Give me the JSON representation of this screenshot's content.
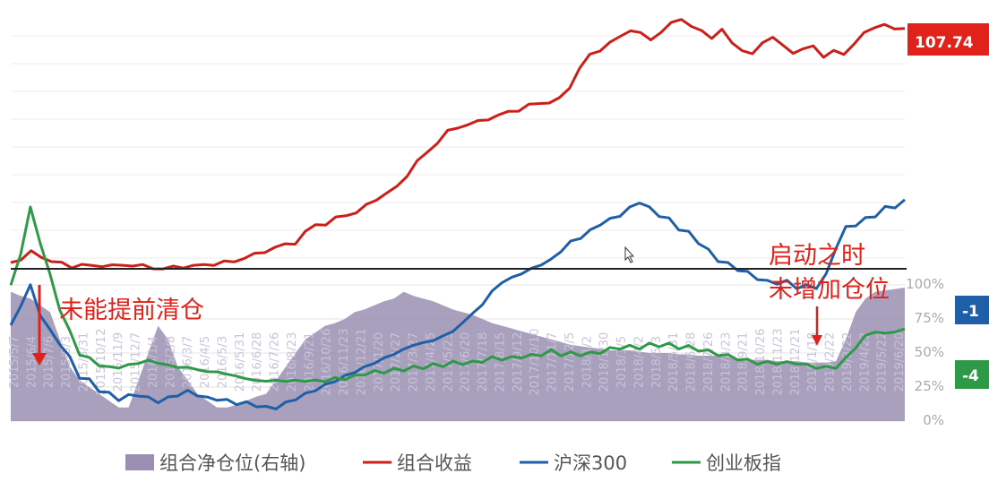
{
  "chart_data": {
    "type": "line",
    "panels": [
      "portfolio-return (top)",
      "net-position / index (bottom)"
    ],
    "x_ticks": [
      "2015/5/7",
      "2015/6/4",
      "2015/7/6",
      "2015/8/3",
      "2015/8/31",
      "2015/10/12",
      "2015/11/9",
      "2015/12/7",
      "2016/1/4",
      "2016/2/8",
      "2016/3/7",
      "2016/4/5",
      "2016/5/3",
      "2016/5/31",
      "2016/6/28",
      "2016/7/26",
      "2016/8/23",
      "2016/9/21",
      "2016/10/26",
      "2016/11/23",
      "2016/12/21",
      "2017/1/20",
      "2017/2/27",
      "2017/3/27",
      "2017/4/25",
      "2017/5/23",
      "2017/6/20",
      "2017/7/18",
      "2017/8/15",
      "2017/9/12",
      "2017/10/10",
      "2017/11/7",
      "2017/12/5",
      "2018/1/2",
      "2018/1/30",
      "2018/3/5",
      "2018/4/2",
      "2018/5/3",
      "2018/5/31",
      "2018/6/28",
      "2018/7/26",
      "2018/8/23",
      "2018/9/21",
      "2018/10/26",
      "2018/11/23",
      "2018/12/21",
      "2019/1/18",
      "2019/2/22",
      "2019/3/22",
      "2019/4/23",
      "2019/5/22",
      "2019/6/20"
    ],
    "right_axis_ticks": [
      "100%",
      "75%",
      "50%",
      "25%",
      "0%"
    ],
    "badges": {
      "portfolio": "107.74",
      "csi300": "-1",
      "chinext": "-4"
    },
    "series": [
      {
        "name": "组合收益",
        "panel": "top",
        "color": "#cc1f1a",
        "values": [
          0,
          3,
          8,
          5,
          1,
          -1,
          -3,
          -2,
          -3,
          -2,
          -3,
          -2,
          -2,
          -3,
          -4,
          -5,
          -4,
          -3,
          -3,
          -2,
          -1,
          0,
          1,
          4,
          6,
          9,
          12,
          14,
          16,
          24,
          30,
          31,
          35,
          38,
          40,
          45,
          51,
          55,
          60,
          70,
          80,
          88,
          96,
          104,
          108,
          110,
          112,
          115,
          117,
          120,
          122,
          125,
          127,
          128,
          130,
          140,
          155,
          165,
          170,
          175,
          180,
          186,
          182,
          178,
          184,
          190,
          195,
          188,
          184,
          180,
          185,
          175,
          170,
          165,
          176,
          180,
          172,
          168,
          170,
          172,
          165,
          168,
          166,
          175,
          182,
          188,
          190,
          185,
          188
        ],
        "values_note_pct_scale": true
      },
      {
        "name": "沪深300",
        "panel": "bottom",
        "color": "#1f5fa8",
        "values": [
          42,
          52,
          60,
          48,
          40,
          35,
          28,
          20,
          18,
          14,
          12,
          10,
          11,
          12,
          10,
          9,
          10,
          12,
          13,
          12,
          10,
          10,
          9,
          8,
          8,
          7,
          6,
          6,
          8,
          10,
          12,
          14,
          16,
          18,
          20,
          22,
          24,
          26,
          28,
          30,
          32,
          34,
          35,
          36,
          38,
          40,
          44,
          48,
          52,
          58,
          62,
          64,
          66,
          68,
          70,
          72,
          76,
          80,
          82,
          85,
          88,
          90,
          92,
          95,
          98,
          95,
          92,
          90,
          86,
          84,
          80,
          76,
          72,
          70,
          68,
          66,
          64,
          62,
          62,
          62,
          60,
          60,
          60,
          65,
          78,
          86,
          88,
          90,
          92,
          95,
          96,
          98
        ]
      },
      {
        "name": "创业板指",
        "panel": "bottom",
        "color": "#2e9a47",
        "values": [
          60,
          75,
          95,
          80,
          65,
          50,
          40,
          30,
          28,
          25,
          24,
          24,
          25,
          26,
          27,
          26,
          25,
          24,
          24,
          23,
          22,
          22,
          21,
          20,
          19,
          18,
          18,
          18,
          18,
          18,
          18,
          18,
          18,
          19,
          19,
          20,
          21,
          22,
          22,
          23,
          23,
          24,
          24,
          25,
          25,
          26,
          26,
          26,
          27,
          28,
          28,
          28,
          29,
          29,
          30,
          31,
          30,
          30,
          30,
          30,
          31,
          32,
          33,
          33,
          33,
          34,
          34,
          34,
          33,
          33,
          32,
          31,
          30,
          29,
          28,
          27,
          26,
          26,
          26,
          26,
          26,
          25,
          24,
          24,
          24,
          28,
          33,
          38,
          40,
          39,
          40,
          41
        ]
      },
      {
        "name": "组合净仓位(右轴)",
        "panel": "bottom",
        "color": "#9a8fb2",
        "type": "area",
        "values": [
          95,
          92,
          90,
          85,
          80,
          60,
          40,
          30,
          25,
          20,
          15,
          10,
          10,
          30,
          50,
          70,
          60,
          40,
          30,
          20,
          15,
          10,
          10,
          12,
          15,
          18,
          20,
          30,
          40,
          50,
          60,
          65,
          70,
          72,
          75,
          80,
          82,
          85,
          88,
          90,
          95,
          92,
          90,
          88,
          85,
          82,
          80,
          78,
          75,
          72,
          70,
          68,
          66,
          64,
          62,
          60,
          58,
          56,
          55,
          54,
          53,
          52,
          52,
          52,
          51,
          50,
          50,
          50,
          49,
          49,
          48,
          48,
          48,
          47,
          46,
          45,
          45,
          45,
          44,
          44,
          44,
          43,
          43,
          43,
          44,
          60,
          80,
          90,
          95,
          96,
          97,
          98
        ]
      }
    ],
    "legend": [
      {
        "label": "组合净仓位(右轴)",
        "color": "#9a8fb2",
        "shape": "square"
      },
      {
        "label": "组合收益",
        "color": "#cc1f1a",
        "shape": "line"
      },
      {
        "label": "沪深300",
        "color": "#1f5fa8",
        "shape": "line"
      },
      {
        "label": "创业板指",
        "color": "#2e9a47",
        "shape": "line"
      }
    ],
    "annotations": [
      {
        "text": "未能提前清仓",
        "color": "#e0221a"
      },
      {
        "text": "启动之时",
        "color": "#e0221a"
      },
      {
        "text": "未增加仓位",
        "color": "#e0221a"
      }
    ],
    "grid": true,
    "legend_position": "bottom"
  }
}
